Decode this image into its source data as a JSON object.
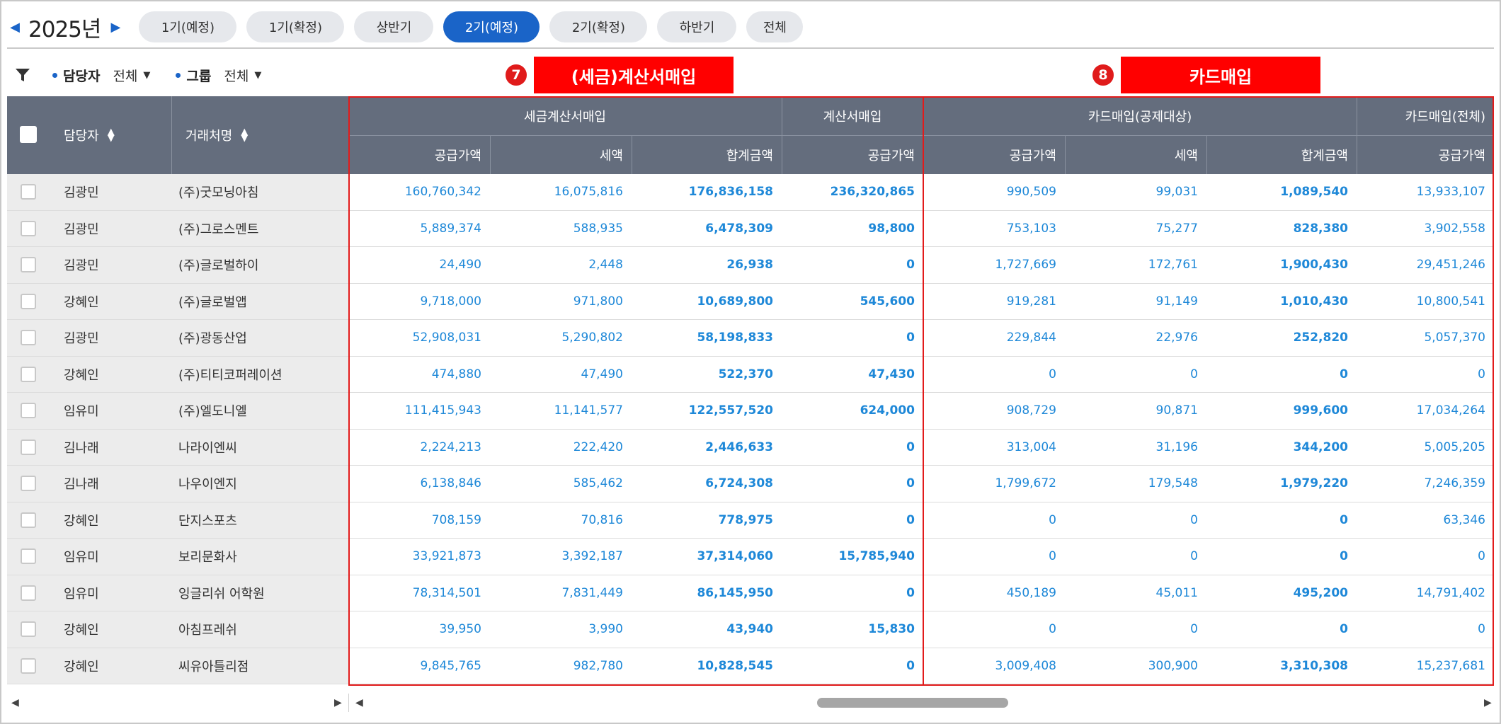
{
  "period": {
    "year": "2025년",
    "prev_icon": "caret-left-icon",
    "next_icon": "caret-right-icon",
    "tabs": [
      {
        "label": "1기(예정)",
        "active": false
      },
      {
        "label": "1기(확정)",
        "active": false
      },
      {
        "label": "상반기",
        "active": false
      },
      {
        "label": "2기(예정)",
        "active": true
      },
      {
        "label": "2기(확정)",
        "active": false
      },
      {
        "label": "하반기",
        "active": false
      },
      {
        "label": "전체",
        "active": false
      }
    ]
  },
  "filters": {
    "icon": "filter-icon",
    "manager": {
      "label": "담당자",
      "value": "전체"
    },
    "group": {
      "label": "그룹",
      "value": "전체"
    }
  },
  "callouts": {
    "tax": {
      "number": "7",
      "title": "(세금)계산서매입"
    },
    "card": {
      "number": "8",
      "title": "카드매입"
    }
  },
  "columns": {
    "manager": "담당자",
    "client": "거래처명",
    "group_tax_invoice": "세금계산서매입",
    "group_invoice": "계산서매입",
    "group_card_deduct": "카드매입(공제대상)",
    "group_card_total": "카드매입(전체)",
    "supply": "공급가액",
    "tax": "세액",
    "total": "합계금액"
  },
  "rows": [
    {
      "manager": "김광민",
      "client": "(주)굿모닝아침",
      "v": [
        "160,760,342",
        "16,075,816",
        "176,836,158",
        "236,320,865",
        "990,509",
        "99,031",
        "1,089,540",
        "13,933,107"
      ]
    },
    {
      "manager": "김광민",
      "client": "(주)그로스멘트",
      "v": [
        "5,889,374",
        "588,935",
        "6,478,309",
        "98,800",
        "753,103",
        "75,277",
        "828,380",
        "3,902,558"
      ]
    },
    {
      "manager": "김광민",
      "client": "(주)글로벌하이",
      "v": [
        "24,490",
        "2,448",
        "26,938",
        "0",
        "1,727,669",
        "172,761",
        "1,900,430",
        "29,451,246"
      ]
    },
    {
      "manager": "강혜인",
      "client": "(주)글로벌앱",
      "v": [
        "9,718,000",
        "971,800",
        "10,689,800",
        "545,600",
        "919,281",
        "91,149",
        "1,010,430",
        "10,800,541"
      ]
    },
    {
      "manager": "김광민",
      "client": "(주)광동산업",
      "v": [
        "52,908,031",
        "5,290,802",
        "58,198,833",
        "0",
        "229,844",
        "22,976",
        "252,820",
        "5,057,370"
      ]
    },
    {
      "manager": "강혜인",
      "client": "(주)티티코퍼레이션",
      "v": [
        "474,880",
        "47,490",
        "522,370",
        "47,430",
        "0",
        "0",
        "0",
        "0"
      ]
    },
    {
      "manager": "임유미",
      "client": "(주)엘도니엘",
      "v": [
        "111,415,943",
        "11,141,577",
        "122,557,520",
        "624,000",
        "908,729",
        "90,871",
        "999,600",
        "17,034,264"
      ]
    },
    {
      "manager": "김나래",
      "client": "나라이엔씨",
      "v": [
        "2,224,213",
        "222,420",
        "2,446,633",
        "0",
        "313,004",
        "31,196",
        "344,200",
        "5,005,205"
      ]
    },
    {
      "manager": "김나래",
      "client": "나우이엔지",
      "v": [
        "6,138,846",
        "585,462",
        "6,724,308",
        "0",
        "1,799,672",
        "179,548",
        "1,979,220",
        "7,246,359"
      ]
    },
    {
      "manager": "강혜인",
      "client": "단지스포츠",
      "v": [
        "708,159",
        "70,816",
        "778,975",
        "0",
        "0",
        "0",
        "0",
        "63,346"
      ]
    },
    {
      "manager": "임유미",
      "client": "보리문화사",
      "v": [
        "33,921,873",
        "3,392,187",
        "37,314,060",
        "15,785,940",
        "0",
        "0",
        "0",
        "0"
      ]
    },
    {
      "manager": "임유미",
      "client": "잉글리쉬 어학원",
      "v": [
        "78,314,501",
        "7,831,449",
        "86,145,950",
        "0",
        "450,189",
        "45,011",
        "495,200",
        "14,791,402"
      ]
    },
    {
      "manager": "강혜인",
      "client": "아침프레쉬",
      "v": [
        "39,950",
        "3,990",
        "43,940",
        "15,830",
        "0",
        "0",
        "0",
        "0"
      ]
    },
    {
      "manager": "강혜인",
      "client": "씨유아틀리점",
      "v": [
        "9,845,765",
        "982,780",
        "10,828,545",
        "0",
        "3,009,408",
        "300,900",
        "3,310,308",
        "15,237,681"
      ]
    }
  ],
  "scrollbar": {
    "left_icon": "scroll-left-icon",
    "right_icon": "scroll-right-icon",
    "position": 0.35
  }
}
